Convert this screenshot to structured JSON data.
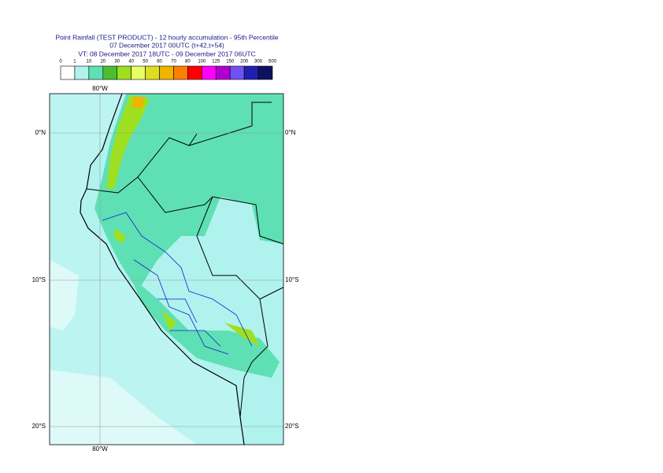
{
  "header": {
    "title": "Point Rainfall (TEST PRODUCT) - 12 hourly accumulation - 95th Percentile",
    "issued": "07 December 2017 00UTC (t+42,t+54)",
    "valid": "VT: 08 December 2017 18UTC - 09 December 2017 06UTC"
  },
  "legend": {
    "labels": [
      "0",
      "1",
      "10",
      "20",
      "30",
      "40",
      "50",
      "60",
      "70",
      "80",
      "100",
      "125",
      "150",
      "200",
      "300",
      "500"
    ],
    "colors": [
      "#ffffff",
      "#b0f2ee",
      "#5ee0b4",
      "#4cbf30",
      "#9ee020",
      "#eaff66",
      "#dede20",
      "#f0b400",
      "#ff8000",
      "#ff0000",
      "#ff00ff",
      "#b000d0",
      "#7050f0",
      "#2020b0",
      "#101060"
    ]
  },
  "map": {
    "lon_label": "80°W",
    "lat_labels": [
      "0°N",
      "10°S",
      "20°S"
    ]
  }
}
